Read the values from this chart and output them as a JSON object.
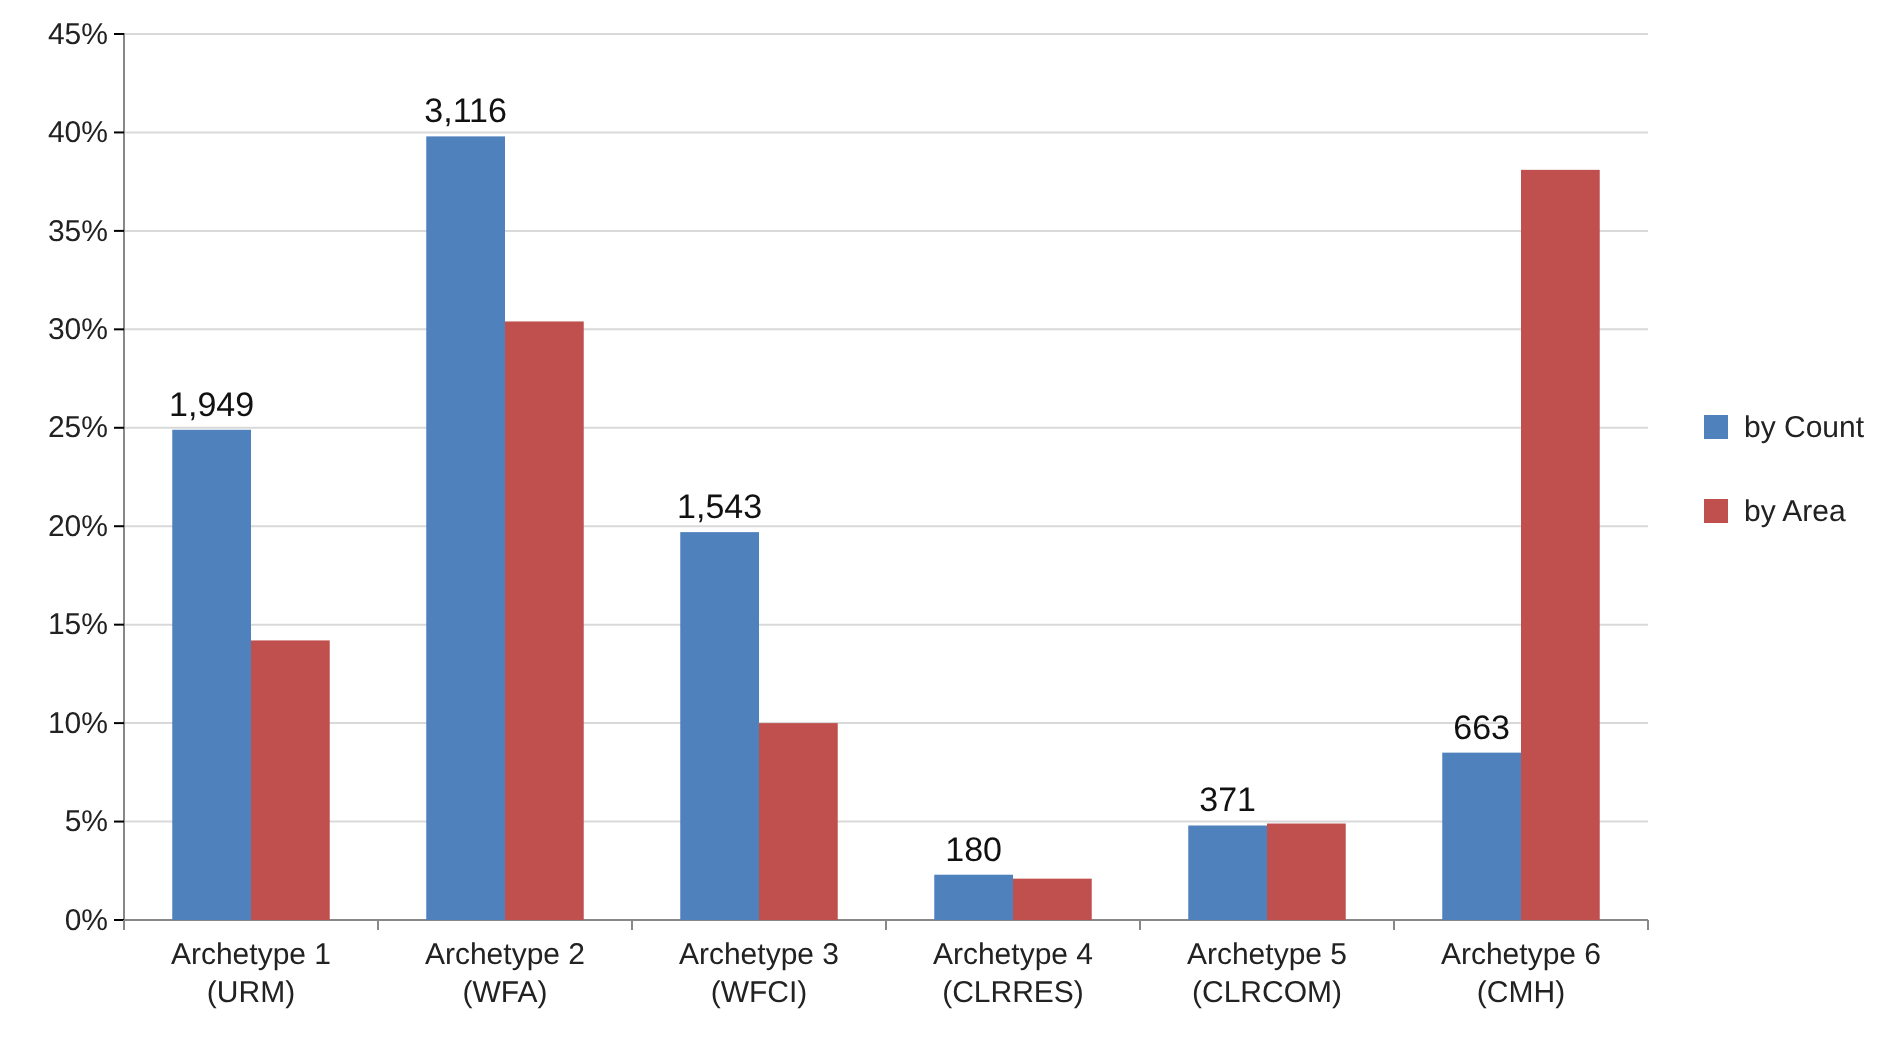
{
  "chart_data": {
    "type": "bar",
    "categories": [
      "Archetype 1\n(URM)",
      "Archetype 2\n(WFA)",
      "Archetype 3\n(WFCI)",
      "Archetype 4\n(CLRRES)",
      "Archetype 5\n(CLRCOM)",
      "Archetype 6\n(CMH)"
    ],
    "series": [
      {
        "name": "by Count",
        "color": "#4f81bd",
        "values": [
          24.9,
          39.8,
          19.7,
          2.3,
          4.8,
          8.5
        ]
      },
      {
        "name": "by Area",
        "color": "#c0504d",
        "values": [
          14.2,
          30.4,
          10.0,
          2.1,
          4.9,
          38.1
        ]
      }
    ],
    "ylim": [
      0,
      45
    ],
    "yticks": [
      {
        "value": 0,
        "label": "0%"
      },
      {
        "value": 5,
        "label": "5%"
      },
      {
        "value": 10,
        "label": "10%"
      },
      {
        "value": 15,
        "label": "15%"
      },
      {
        "value": 20,
        "label": "20%"
      },
      {
        "value": 25,
        "label": "25%"
      },
      {
        "value": 30,
        "label": "30%"
      },
      {
        "value": 35,
        "label": "35%"
      },
      {
        "value": 40,
        "label": "40%"
      },
      {
        "value": 45,
        "label": "45%"
      }
    ],
    "annotations": [
      {
        "text": "1,949",
        "x": "Archetype 1\n(URM)",
        "y": 24.9
      },
      {
        "text": "3,116",
        "x": "Archetype 2\n(WFA)",
        "y": 39.8
      },
      {
        "text": "1,543",
        "x": "Archetype 3\n(WFCI)",
        "y": 19.7
      },
      {
        "text": "180",
        "x": "Archetype 4\n(CLRRES)",
        "y": 2.3
      },
      {
        "text": "371",
        "x": "Archetype 5\n(CLRCOM)",
        "y": 4.8
      },
      {
        "text": "663",
        "x": "Archetype 6\n(CMH)",
        "y": 8.5
      }
    ],
    "grid": "y",
    "legend": "right"
  }
}
